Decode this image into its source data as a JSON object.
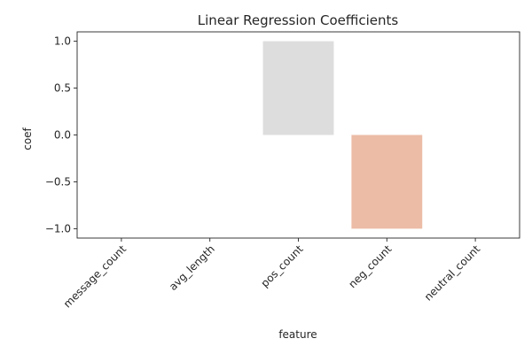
{
  "chart_data": {
    "type": "bar",
    "title": "Linear Regression Coefficients",
    "xlabel": "feature",
    "ylabel": "coef",
    "categories": [
      "message_count",
      "avg_length",
      "pos_count",
      "neg_count",
      "neutral_count"
    ],
    "values": [
      0.0,
      0.0,
      1.0,
      -1.0,
      0.0
    ],
    "bar_colors": [
      "#3b4cc0",
      "#8db0fe",
      "#dddddd",
      "#ecbca6",
      "#b40426"
    ],
    "ylim": [
      -1.1,
      1.1
    ],
    "yticks": [
      -1.0,
      -0.5,
      0.0,
      0.5,
      1.0
    ],
    "ytick_labels": [
      "−1.0",
      "−0.5",
      "0.0",
      "0.5",
      "1.0"
    ],
    "grid": false,
    "legend": "none"
  }
}
